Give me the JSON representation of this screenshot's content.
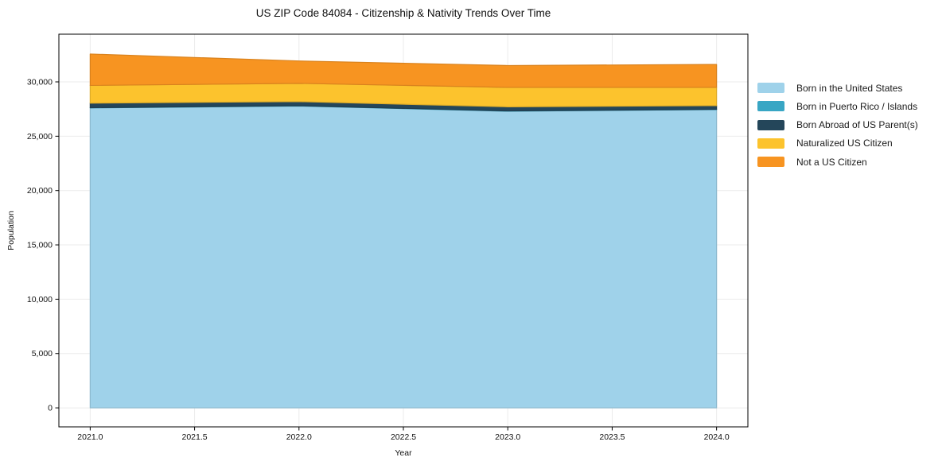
{
  "chart_data": {
    "type": "area",
    "stacked": true,
    "title": "US ZIP Code 84084 - Citizenship & Nativity Trends Over Time",
    "xlabel": "Year",
    "ylabel": "Population",
    "x": [
      2021,
      2022,
      2023,
      2024
    ],
    "series": [
      {
        "name": "Born in the United States",
        "color": "#9fd2ea",
        "values": [
          27600,
          27780,
          27300,
          27450
        ]
      },
      {
        "name": "Born in Puerto Rico / Islands",
        "color": "#38a6c4",
        "values": [
          25,
          25,
          25,
          25
        ]
      },
      {
        "name": "Born Abroad of US Parent(s)",
        "color": "#24465a",
        "values": [
          420,
          380,
          380,
          340
        ]
      },
      {
        "name": "Naturalized US Citizen",
        "color": "#fcc32d",
        "values": [
          1630,
          1680,
          1790,
          1680
        ]
      },
      {
        "name": "Not a US Citizen",
        "color": "#f79421",
        "values": [
          2890,
          2060,
          2010,
          2110
        ]
      }
    ],
    "totals": [
      32565,
      31925,
      31505,
      31605
    ],
    "x_ticks": {
      "values": [
        2021.0,
        2021.5,
        2022.0,
        2022.5,
        2023.0,
        2023.5,
        2024.0
      ],
      "labels": [
        "2021.0",
        "2021.5",
        "2022.0",
        "2022.5",
        "2023.0",
        "2023.5",
        "2024.0"
      ]
    },
    "y_ticks": {
      "values": [
        0,
        5000,
        10000,
        15000,
        20000,
        25000,
        30000
      ],
      "labels": [
        "0",
        "5,000",
        "10,000",
        "15,000",
        "20,000",
        "25,000",
        "30,000"
      ]
    },
    "xlim": [
      2020.85,
      2024.15
    ],
    "ylim": [
      -1750,
      34390
    ],
    "grid": true,
    "grid_color": "#ebebeb",
    "spine_color": "#000000",
    "background": "#ffffff",
    "legend_position": "outside-center-right"
  }
}
